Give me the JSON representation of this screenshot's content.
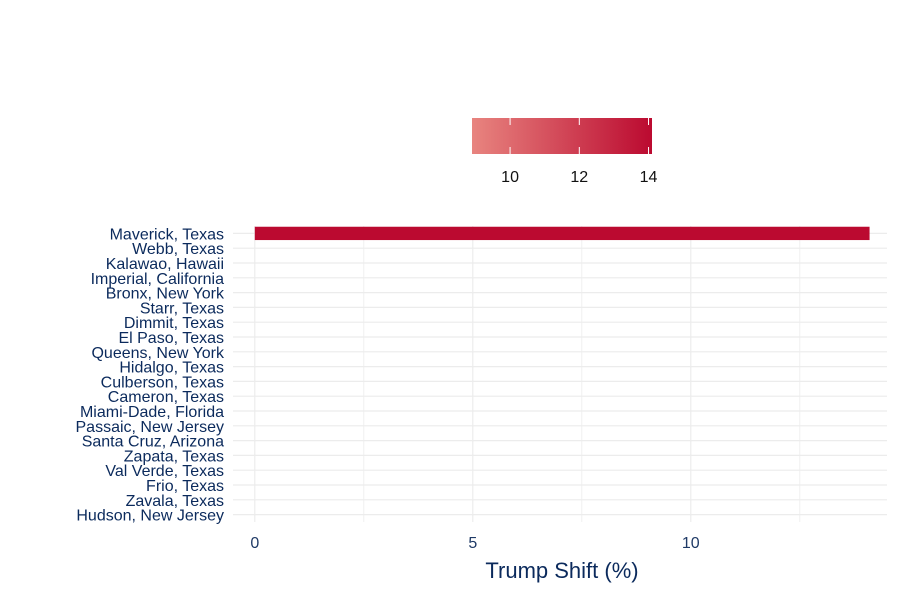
{
  "chart_data": {
    "type": "bar",
    "orientation": "horizontal",
    "categories": [
      "Maverick, Texas",
      "Webb, Texas",
      "Kalawao, Hawaii",
      "Imperial, California",
      "Bronx, New York",
      "Starr, Texas",
      "Dimmit, Texas",
      "El Paso, Texas",
      "Queens, New York",
      "Hidalgo, Texas",
      "Culberson, Texas",
      "Cameron, Texas",
      "Miami-Dade, Florida",
      "Passaic, New Jersey",
      "Santa Cruz, Arizona",
      "Zapata, Texas",
      "Val Verde, Texas",
      "Frio, Texas",
      "Zavala, Texas",
      "Hudson, New Jersey"
    ],
    "values": [
      14.1,
      null,
      null,
      null,
      null,
      null,
      null,
      null,
      null,
      null,
      null,
      null,
      null,
      null,
      null,
      null,
      null,
      null,
      null,
      null
    ],
    "xlabel": "Trump Shift (%)",
    "ylabel": "",
    "xlim": [
      -0.5,
      14.5
    ],
    "xticks": [
      0,
      5,
      10
    ],
    "grid": true,
    "legend": {
      "position": "top",
      "type": "colorbar",
      "range": [
        8.9,
        14.1
      ],
      "ticks": [
        10,
        12,
        14
      ],
      "color_low": "#e8847f",
      "color_high": "#bb0a30"
    },
    "bar_color": "#bb0a30"
  }
}
